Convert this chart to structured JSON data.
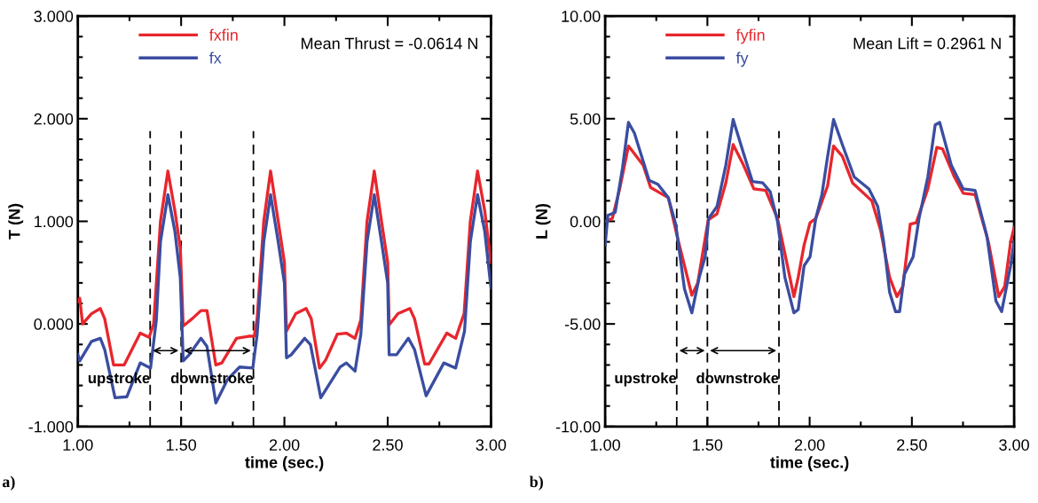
{
  "chart_data": [
    {
      "type": "line",
      "xlabel": "time (sec.)",
      "ylabel": "T (N)",
      "xlim": [
        1.0,
        3.0
      ],
      "ylim": [
        -1.0,
        3.0
      ],
      "xticks": [
        {
          "value": 1.0,
          "label": "1.00"
        },
        {
          "value": 1.5,
          "label": "1.50"
        },
        {
          "value": 2.0,
          "label": "2.00"
        },
        {
          "value": 2.5,
          "label": "2.50"
        },
        {
          "value": 3.0,
          "label": "3.00"
        }
      ],
      "yticks": [
        {
          "value": -1,
          "label": "-1.000"
        },
        {
          "value": 0,
          "label": "0.000"
        },
        {
          "value": 1,
          "label": "1.000"
        },
        {
          "value": 2,
          "label": "2.000"
        },
        {
          "value": 3,
          "label": "3.000"
        }
      ],
      "legend": "top left",
      "grid": false,
      "line_style": "solid",
      "marker": "none",
      "series": [
        {
          "name": "fxfin",
          "color": "#e8262d",
          "x": [
            1.0,
            1.009,
            1.023,
            1.066,
            1.109,
            1.13,
            1.173,
            1.224,
            1.302,
            1.345,
            1.367,
            1.4,
            1.436,
            1.47,
            1.496,
            1.51,
            1.553,
            1.596,
            1.625,
            1.668,
            1.697,
            1.768,
            1.826,
            1.854,
            1.868,
            1.9,
            1.933,
            1.97,
            2.0,
            2.01,
            2.055,
            2.105,
            2.13,
            2.17,
            2.2,
            2.256,
            2.3,
            2.342,
            2.37,
            2.4,
            2.435,
            2.47,
            2.5,
            2.507,
            2.55,
            2.607,
            2.63,
            2.679,
            2.7,
            2.786,
            2.829,
            2.87,
            2.9,
            2.935,
            2.97,
            3.0
          ],
          "values": [
            0.22,
            0.25,
            0.0,
            0.1,
            0.15,
            0.05,
            -0.4,
            -0.4,
            -0.09,
            -0.13,
            0.0,
            1.0,
            1.49,
            1.1,
            0.74,
            -0.02,
            0.05,
            0.13,
            0.13,
            -0.4,
            -0.38,
            -0.14,
            -0.12,
            -0.12,
            0.05,
            1.0,
            1.49,
            1.0,
            0.6,
            -0.07,
            0.1,
            0.15,
            0.05,
            -0.43,
            -0.35,
            -0.1,
            -0.09,
            -0.14,
            0.04,
            1.0,
            1.49,
            1.0,
            0.6,
            -0.01,
            0.1,
            0.15,
            0.05,
            -0.39,
            -0.39,
            -0.09,
            -0.14,
            0.1,
            1.0,
            1.49,
            1.1,
            0.6
          ]
        },
        {
          "name": "fx",
          "color": "#3a4da0",
          "x": [
            1.0,
            1.009,
            1.066,
            1.109,
            1.13,
            1.18,
            1.237,
            1.302,
            1.352,
            1.38,
            1.4,
            1.436,
            1.47,
            1.496,
            1.51,
            1.539,
            1.596,
            1.625,
            1.668,
            1.725,
            1.783,
            1.847,
            1.868,
            1.9,
            1.933,
            1.97,
            2.0,
            2.01,
            2.033,
            2.098,
            2.126,
            2.176,
            2.27,
            2.3,
            2.342,
            2.37,
            2.4,
            2.435,
            2.47,
            2.5,
            2.507,
            2.543,
            2.6,
            2.63,
            2.686,
            2.772,
            2.829,
            2.872,
            2.9,
            2.935,
            2.97,
            3.0
          ],
          "values": [
            -0.3,
            -0.36,
            -0.17,
            -0.14,
            -0.25,
            -0.72,
            -0.71,
            -0.38,
            -0.43,
            0.04,
            0.8,
            1.26,
            0.9,
            0.45,
            -0.36,
            -0.3,
            -0.14,
            -0.22,
            -0.77,
            -0.54,
            -0.42,
            -0.43,
            -0.1,
            0.8,
            1.26,
            0.8,
            0.4,
            -0.33,
            -0.3,
            -0.14,
            -0.2,
            -0.72,
            -0.42,
            -0.38,
            -0.46,
            -0.1,
            0.8,
            1.26,
            0.8,
            0.4,
            -0.3,
            -0.3,
            -0.14,
            -0.25,
            -0.7,
            -0.38,
            -0.43,
            -0.07,
            0.8,
            1.26,
            0.9,
            0.35
          ]
        }
      ],
      "ref_lines": [
        {
          "axis": "x",
          "value": 1.35,
          "label": null,
          "line_style": "dashed",
          "color": "#000000"
        },
        {
          "axis": "x",
          "value": 1.5,
          "label": null,
          "line_style": "dashed",
          "color": "#000000"
        },
        {
          "axis": "x",
          "value": 1.85,
          "label": null,
          "line_style": "dashed",
          "color": "#000000"
        }
      ],
      "annotations": [
        "Mean Thrust = -0.0614 N",
        "upstroke",
        "downstroke",
        "a)"
      ]
    },
    {
      "type": "line",
      "xlabel": "time (sec.)",
      "ylabel": "L (N)",
      "xlim": [
        1.0,
        3.0
      ],
      "ylim": [
        -10.0,
        10.0
      ],
      "xticks": [
        {
          "value": 1.0,
          "label": "1.00"
        },
        {
          "value": 1.5,
          "label": "1.50"
        },
        {
          "value": 2.0,
          "label": "2.00"
        },
        {
          "value": 2.5,
          "label": "2.50"
        },
        {
          "value": 3.0,
          "label": "3.00"
        }
      ],
      "yticks": [
        {
          "value": -10,
          "label": "-10.00"
        },
        {
          "value": -5,
          "label": "-5.00"
        },
        {
          "value": 0,
          "label": "0.00"
        },
        {
          "value": 5,
          "label": "5.00"
        },
        {
          "value": 10,
          "label": "10.00"
        }
      ],
      "legend": "top left",
      "grid": false,
      "line_style": "solid",
      "marker": "none",
      "series": [
        {
          "name": "fyfin",
          "color": "#e8262d",
          "x": [
            1.0,
            1.035,
            1.071,
            1.114,
            1.186,
            1.222,
            1.258,
            1.309,
            1.352,
            1.424,
            1.453,
            1.504,
            1.547,
            1.59,
            1.626,
            1.677,
            1.727,
            1.785,
            1.843,
            1.923,
            1.944,
            1.973,
            2.002,
            2.03,
            2.088,
            2.117,
            2.16,
            2.21,
            2.304,
            2.347,
            2.391,
            2.427,
            2.456,
            2.492,
            2.521,
            2.578,
            2.622,
            2.65,
            2.708,
            2.751,
            2.809,
            2.874,
            2.925,
            2.954,
            2.983,
            3.0
          ],
          "values": [
            0.0,
            0.14,
            1.58,
            3.67,
            2.73,
            1.65,
            1.44,
            1.15,
            -0.72,
            -3.6,
            -3.0,
            0.07,
            0.36,
            1.87,
            3.74,
            2.73,
            1.58,
            1.51,
            0.14,
            -3.67,
            -2.73,
            -1.15,
            -0.07,
            0.14,
            1.73,
            3.67,
            3.17,
            1.87,
            1.0,
            -0.43,
            -2.73,
            -3.67,
            -3.17,
            -0.14,
            -0.07,
            1.58,
            3.6,
            3.53,
            2.16,
            1.37,
            1.3,
            -1.0,
            -3.67,
            -3.17,
            -1.0,
            -0.3
          ]
        },
        {
          "name": "fy",
          "color": "#3a4da0",
          "x": [
            1.0,
            1.013,
            1.049,
            1.085,
            1.114,
            1.143,
            1.215,
            1.258,
            1.309,
            1.345,
            1.388,
            1.424,
            1.46,
            1.489,
            1.506,
            1.547,
            1.59,
            1.626,
            1.677,
            1.72,
            1.771,
            1.807,
            1.843,
            1.879,
            1.923,
            1.944,
            1.973,
            2.002,
            2.03,
            2.06,
            2.088,
            2.117,
            2.16,
            2.218,
            2.29,
            2.333,
            2.362,
            2.391,
            2.42,
            2.44,
            2.463,
            2.506,
            2.535,
            2.578,
            2.614,
            2.636,
            2.693,
            2.751,
            2.809,
            2.867,
            2.911,
            2.939,
            2.983,
            3.0
          ],
          "values": [
            -1.15,
            0.29,
            0.43,
            2.6,
            4.82,
            4.3,
            2.0,
            1.8,
            1.15,
            -0.14,
            -3.3,
            -4.46,
            -2.73,
            -1.73,
            0.14,
            0.72,
            2.73,
            4.96,
            3.31,
            1.94,
            1.87,
            1.44,
            0.0,
            -2.73,
            -4.46,
            -4.3,
            -2.16,
            -1.73,
            0.14,
            1.3,
            3.17,
            4.96,
            3.74,
            2.16,
            1.58,
            0.72,
            -1.0,
            -3.45,
            -4.4,
            -4.4,
            -2.59,
            -1.73,
            0.14,
            2.16,
            4.7,
            4.82,
            2.73,
            1.58,
            1.51,
            -0.72,
            -3.88,
            -4.4,
            -2.16,
            -1.0
          ]
        }
      ],
      "ref_lines": [
        {
          "axis": "x",
          "value": 1.35,
          "label": null,
          "line_style": "dashed",
          "color": "#000000"
        },
        {
          "axis": "x",
          "value": 1.5,
          "label": null,
          "line_style": "dashed",
          "color": "#000000"
        },
        {
          "axis": "x",
          "value": 1.85,
          "label": null,
          "line_style": "dashed",
          "color": "#000000"
        }
      ],
      "annotations": [
        "Mean Lift = 0.2961 N",
        "upstroke",
        "downstroke",
        "b)"
      ]
    }
  ]
}
